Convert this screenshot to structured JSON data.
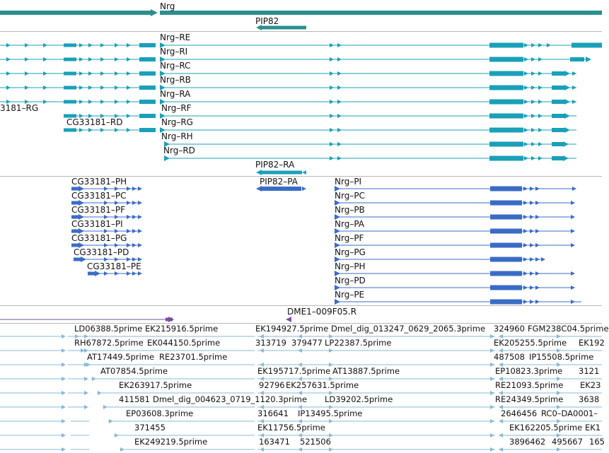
{
  "colors": {
    "gene": "#2a8f8f",
    "transcript": "#1aa0b8",
    "protein": "#3a6cc6",
    "marker": "#7b4fa0",
    "est": "#8ab8d8"
  },
  "gene_track": {
    "gene_label": "Nrg",
    "pip_label": "PIP82"
  },
  "transcript_track": {
    "nrg_labels": [
      "Nrg–RE",
      "Nrg–RI",
      "Nrg–RC",
      "Nrg–RB",
      "Nrg–RA",
      "Nrg–RF",
      "Nrg–RG",
      "Nrg–RH",
      "Nrg–RD"
    ],
    "cg_label_left": "3181–RG",
    "cg_label_rd": "CG33181–RD",
    "pip_label": "PIP82–RA"
  },
  "protein_track": {
    "cg_labels": [
      "CG33181–PH",
      "CG33181–PC",
      "CG33181–PF",
      "CG33181–PI",
      "CG33181–PG",
      "CG33181–PD",
      "CG33181–PE"
    ],
    "pip_label": "PIP82–PA",
    "nrg_labels": [
      "Nrg–PI",
      "Nrg–PC",
      "Nrg–PB",
      "Nrg–PA",
      "Nrg–PF",
      "Nrg–PG",
      "Nrg–PH",
      "Nrg–PD",
      "Nrg–PE"
    ]
  },
  "marker_track": {
    "label": "DME1–009F05.R"
  },
  "est_track": {
    "rows": [
      [
        "LD06388.5prime",
        "EK215916.5prime",
        "EK194927.5prime",
        "Dmel_dig_013247_0629_2065.3prime",
        "324960",
        "FGM238C04.5prime"
      ],
      [
        "RH67872.5prime",
        "EK044150.5prime",
        "313719",
        "379477",
        "LP22387.5prime",
        "EK205255.5prime",
        "EK192"
      ],
      [
        "AT17449.5prime",
        "RE23701.5prime",
        "487508",
        "IP15508.5prime"
      ],
      [
        "AT07854.5prime",
        "EK195717.5prime",
        "AT13887.5prime",
        "EP10823.3prime",
        "3121"
      ],
      [
        "EK263917.5prime",
        "92796",
        "EK257631.5prime",
        "RE21093.5prime",
        "EK23"
      ],
      [
        "411581",
        "Dmel_dig_004623_0719_1120.3prime",
        "LD39202.5prime",
        "RE24349.5prime",
        "3638"
      ],
      [
        "EP03608.3prime",
        "316641",
        "IP13495.5prime",
        "2646456",
        "RC0–DA0001–"
      ],
      [
        "371455",
        "EK11756.5prime",
        "EK162205.5prime",
        "EK1"
      ],
      [
        "EK249219.5prime",
        "163471",
        "521506",
        "3896462",
        "495667",
        "165"
      ]
    ]
  }
}
